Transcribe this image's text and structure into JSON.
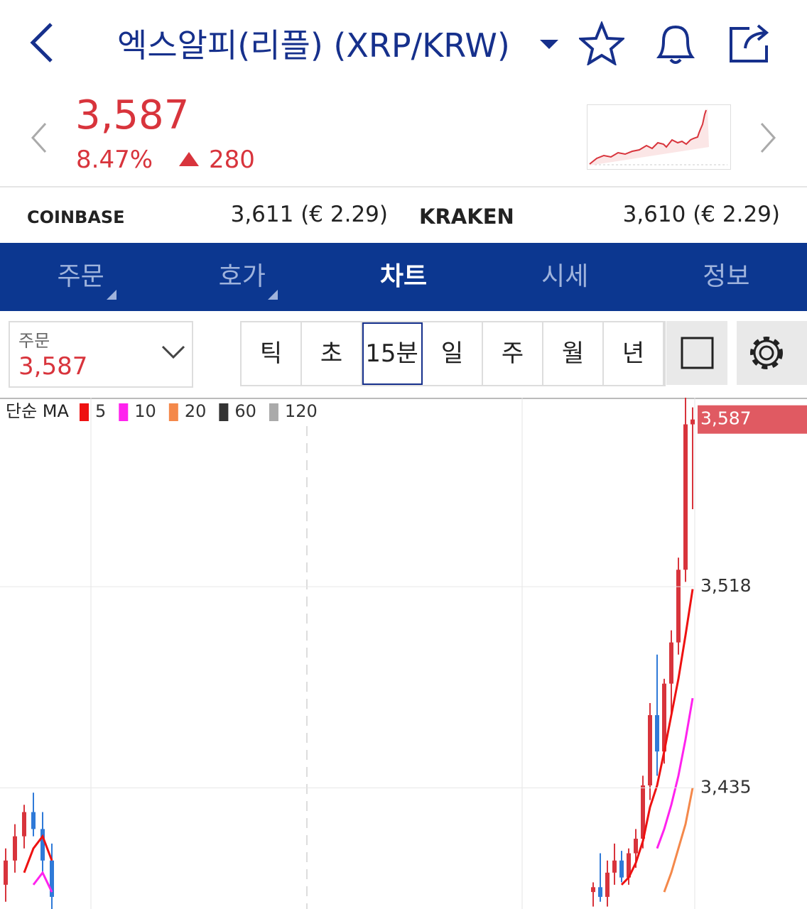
{
  "header": {
    "title": "엑스알피(리플) (XRP/KRW)"
  },
  "price": {
    "value": "3,587",
    "change_pct": "8.47%",
    "change": "280"
  },
  "exchanges": [
    {
      "name": "COINBASE",
      "price": "3,611 (€ 2.29)"
    },
    {
      "name": "KRAKEN",
      "price": "3,610 (€ 2.29)"
    }
  ],
  "tabs": [
    "주문",
    "호가",
    "차트",
    "시세",
    "정보"
  ],
  "selector": {
    "label": "주문",
    "value": "3,587"
  },
  "periods": [
    "틱",
    "초",
    "15분",
    "일",
    "주",
    "월",
    "년"
  ],
  "chart": {
    "type": "candlestick",
    "legend_label": "단순 MA",
    "ma": [
      {
        "name": "5",
        "color": "#ee1111"
      },
      {
        "name": "10",
        "color": "#ff22ee"
      },
      {
        "name": "20",
        "color": "#f4884a"
      },
      {
        "name": "60",
        "color": "#333333"
      },
      {
        "name": "120",
        "color": "#aaaaaa"
      }
    ],
    "up_color": "#d8343c",
    "down_color": "#2f7ad8",
    "ylim": [
      3385,
      3596
    ],
    "yticks": [
      {
        "value": 3518,
        "label": "3,518"
      },
      {
        "value": 3435,
        "label": "3,435"
      }
    ],
    "last_price": {
      "value": 3587,
      "label": "3,587"
    },
    "left": {
      "candles": [
        [
          3395,
          3410,
          3388,
          3405
        ],
        [
          3405,
          3420,
          3400,
          3415
        ],
        [
          3415,
          3428,
          3410,
          3425
        ],
        [
          3425,
          3433,
          3415,
          3418
        ],
        [
          3418,
          3425,
          3400,
          3405
        ],
        [
          3405,
          3412,
          3385,
          3390
        ]
      ],
      "ma5": [
        null,
        null,
        3400,
        3410,
        3415,
        3405
      ],
      "ma10": [
        null,
        null,
        null,
        3395,
        3400,
        3392
      ]
    },
    "right": {
      "candles": [
        [
          3392,
          3396,
          3386,
          3394
        ],
        [
          3394,
          3408,
          3388,
          3390
        ],
        [
          3390,
          3405,
          3386,
          3400
        ],
        [
          3400,
          3412,
          3395,
          3405
        ],
        [
          3405,
          3409,
          3396,
          3398
        ],
        [
          3398,
          3410,
          3395,
          3408
        ],
        [
          3408,
          3418,
          3402,
          3414
        ],
        [
          3414,
          3440,
          3410,
          3436
        ],
        [
          3436,
          3470,
          3430,
          3465
        ],
        [
          3465,
          3490,
          3440,
          3450
        ],
        [
          3450,
          3480,
          3445,
          3478
        ],
        [
          3478,
          3500,
          3465,
          3495
        ],
        [
          3495,
          3530,
          3490,
          3525
        ],
        [
          3525,
          3596,
          3520,
          3585
        ],
        [
          3585,
          3592,
          3550,
          3587
        ]
      ],
      "ma5": [
        null,
        null,
        null,
        null,
        3395,
        3398,
        3404,
        3413,
        3427,
        3436,
        3450,
        3465,
        3480,
        3498,
        3517
      ],
      "ma10": [
        null,
        null,
        null,
        null,
        null,
        null,
        null,
        null,
        null,
        3410,
        3418,
        3428,
        3440,
        3455,
        3472
      ],
      "ma20": [
        null,
        null,
        null,
        null,
        null,
        null,
        null,
        null,
        null,
        null,
        3392,
        3400,
        3410,
        3420,
        3435
      ]
    }
  }
}
